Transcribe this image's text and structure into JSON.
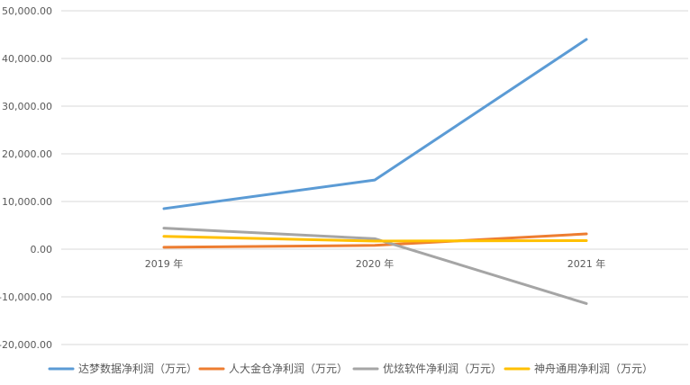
{
  "chart_data": {
    "type": "line",
    "categories": [
      "2019 年",
      "2020 年",
      "2021 年"
    ],
    "ylim": [
      -20000,
      50000
    ],
    "y_ticks": [
      -20000,
      -10000,
      0,
      10000,
      20000,
      30000,
      40000,
      50000
    ],
    "y_tick_labels": [
      "-20,000.00",
      "-10,000.00",
      "0.00",
      "10,000.00",
      "20,000.00",
      "30,000.00",
      "40,000.00",
      "50,000.00"
    ],
    "grid": true,
    "legend_position": "bottom",
    "series": [
      {
        "name": "达梦数据净利润（万元）",
        "color": "#5B9BD5",
        "values": [
          8500,
          14500,
          44000
        ]
      },
      {
        "name": "人大金仓净利润（万元）",
        "color": "#ED7D31",
        "values": [
          400,
          800,
          3200
        ]
      },
      {
        "name": "优炫软件净利润（万元）",
        "color": "#A5A5A5",
        "values": [
          4400,
          2200,
          -11400
        ]
      },
      {
        "name": "神舟通用净利润（万元）",
        "color": "#FFC000",
        "values": [
          2700,
          1700,
          1800
        ]
      }
    ]
  }
}
